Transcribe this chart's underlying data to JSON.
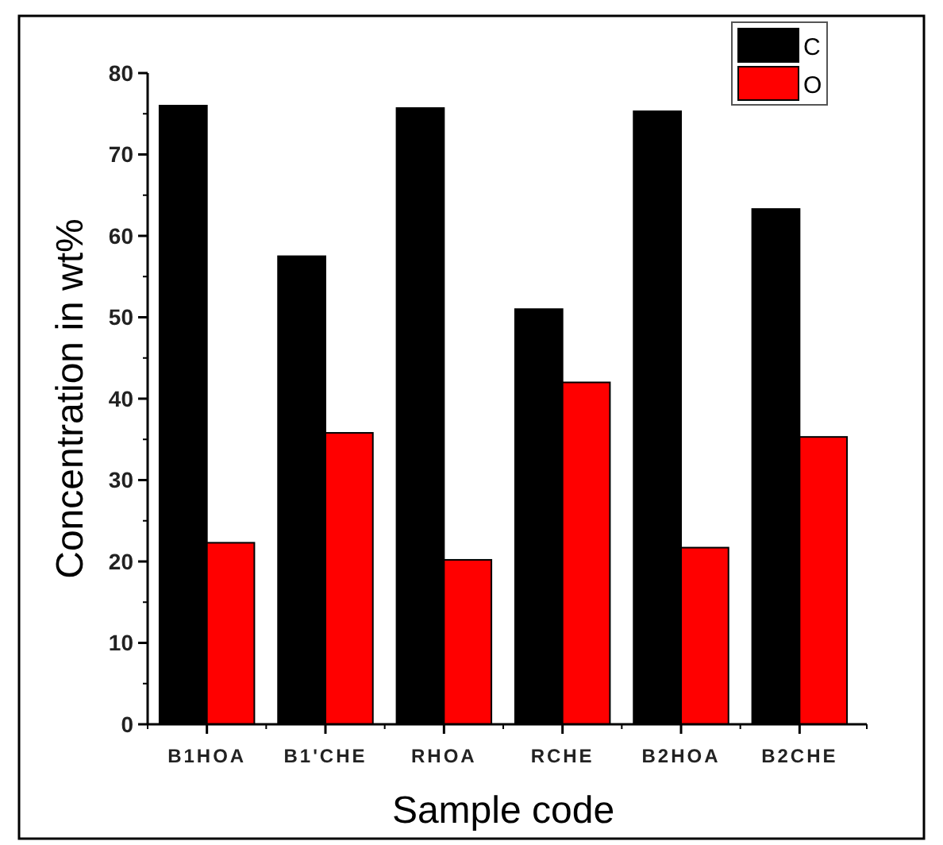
{
  "chart_data": {
    "type": "bar",
    "xlabel": "Sample code",
    "ylabel": "Concentration in wt%",
    "categories": [
      "B1HOA",
      "B1'CHE",
      "RHOA",
      "RCHE",
      "B2HOA",
      "B2CHE"
    ],
    "series": [
      {
        "name": "C",
        "color": "#000000",
        "values": [
          76,
          57.5,
          75.7,
          51,
          75.3,
          63.3
        ]
      },
      {
        "name": "O",
        "color": "#ff0000",
        "values": [
          22.3,
          35.8,
          20.2,
          42,
          21.7,
          35.3
        ]
      }
    ],
    "ylim": [
      0,
      80
    ],
    "yticks": [
      0,
      10,
      20,
      30,
      40,
      50,
      60,
      70,
      80
    ],
    "grid": false,
    "legend": "top right"
  }
}
